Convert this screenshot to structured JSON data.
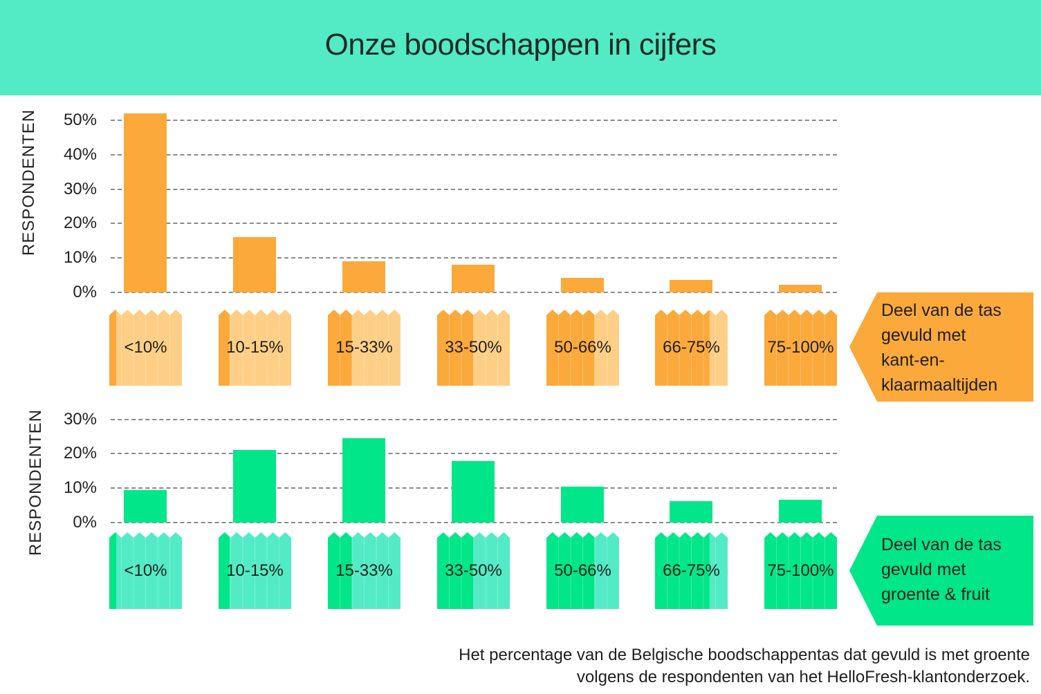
{
  "header": {
    "title": "Onze boodschappen in cijfers",
    "background": "#52EBC5"
  },
  "colors": {
    "orange_dark": "#FBA93B",
    "orange_light": "#FDCF86",
    "green_dark": "#00E688",
    "green_light": "#52EBC5"
  },
  "chart_data": [
    {
      "type": "bar",
      "title": "Deel van de tas gevuld met kant-en-klaarmaaltijden",
      "xlabel": "Deel van de tas gevuld met kant-en-klaarmaaltijden",
      "ylabel": "RESPONDENTEN",
      "categories": [
        "<10%",
        "10-15%",
        "15-33%",
        "33-50%",
        "50-66%",
        "66-75%",
        "75-100%"
      ],
      "values": [
        52,
        16,
        9,
        8,
        4.3,
        3.6,
        2.3
      ],
      "yticks": [
        "0%",
        "10%",
        "20%",
        "30%",
        "40%",
        "50%"
      ],
      "ylim": [
        0,
        50
      ],
      "grid": true,
      "color": "#FBA93B"
    },
    {
      "type": "bar",
      "title": "Deel van de tas gevuld met groente & fruit",
      "xlabel": "Deel van de tas gevuld met groente & fruit",
      "ylabel": "RESPONDENTEN",
      "categories": [
        "<10%",
        "10-15%",
        "15-33%",
        "33-50%",
        "50-66%",
        "66-75%",
        "75-100%"
      ],
      "values": [
        9.4,
        21,
        24.4,
        17.8,
        10.5,
        6.3,
        6.7
      ],
      "yticks": [
        "0%",
        "10%",
        "20%",
        "30%"
      ],
      "ylim": [
        0,
        30
      ],
      "grid": true,
      "color": "#00E688"
    }
  ],
  "top_chart": {
    "ylabel": "RESPONDENTEN",
    "ticks": [
      "50%",
      "40%",
      "30%",
      "20%",
      "10%",
      "0%"
    ],
    "bags": [
      "<10%",
      "10-15%",
      "15-33%",
      "33-50%",
      "50-66%",
      "66-75%",
      "75-100%"
    ],
    "callout_lines": [
      "Deel van de tas",
      "gevuld met",
      "kant-en-",
      "klaarmaaltijden"
    ]
  },
  "bottom_chart": {
    "ylabel": "RESPONDENTEN",
    "ticks": [
      "30%",
      "20%",
      "10%",
      "0%"
    ],
    "bags": [
      "<10%",
      "10-15%",
      "15-33%",
      "33-50%",
      "50-66%",
      "66-75%",
      "75-100%"
    ],
    "callout_lines": [
      "Deel van de tas",
      "gevuld met",
      "groente & fruit"
    ]
  },
  "caption": {
    "line1": "Het percentage van de Belgische boodschappentas dat gevuld is met groente",
    "line2": "volgens de respondenten van het HelloFresh-klantonderzoek."
  }
}
